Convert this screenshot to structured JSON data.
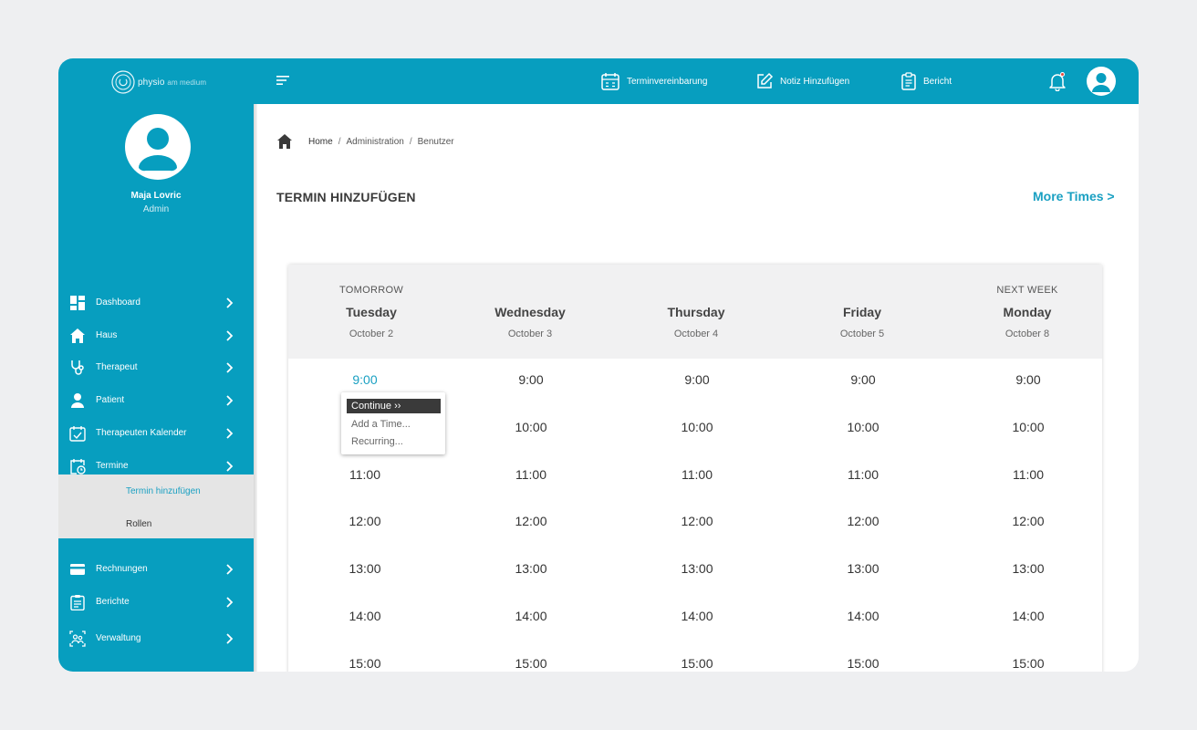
{
  "app": {
    "logo_main": "physio",
    "logo_sub": "am medium"
  },
  "topbar": {
    "actions": [
      {
        "label": "Terminvereinbarung",
        "icon": "calendar-icon"
      },
      {
        "label": "Notiz Hinzufügen",
        "icon": "edit-note-icon"
      },
      {
        "label": "Bericht",
        "icon": "clipboard-icon"
      }
    ],
    "notification_icon": "bell-icon",
    "notification_dot_color": "#e8473b"
  },
  "sidebar": {
    "user_name": "Maja Lovric",
    "user_role": "Admin",
    "items": [
      {
        "label": "Dashboard",
        "icon": "dashboard-icon"
      },
      {
        "label": "Haus",
        "icon": "house-icon"
      },
      {
        "label": "Therapeut",
        "icon": "stethoscope-icon"
      },
      {
        "label": "Patient",
        "icon": "person-icon"
      },
      {
        "label": "Therapeuten Kalender",
        "icon": "calendar-check-icon"
      },
      {
        "label": "Termine",
        "icon": "calendar-clock-icon"
      },
      {
        "label": "Rechnungen",
        "icon": "credit-card-icon"
      },
      {
        "label": "Berichte",
        "icon": "clipboard-icon"
      },
      {
        "label": "Verwaltung",
        "icon": "users-admin-icon"
      }
    ],
    "submenu": [
      {
        "label": "Termin hinzufügen",
        "active": true
      },
      {
        "label": "Rollen",
        "active": false
      }
    ]
  },
  "breadcrumb": {
    "items": [
      "Home",
      "Administration",
      "Benutzer"
    ],
    "separator": "/"
  },
  "main": {
    "title": "TERMIN HINZUFÜGEN",
    "more_times": "More Times >"
  },
  "schedule": {
    "columns": [
      {
        "tag": "TOMORROW",
        "day": "Tuesday",
        "date": "October 2"
      },
      {
        "tag": "",
        "day": "Wednesday",
        "date": "October 3"
      },
      {
        "tag": "",
        "day": "Thursday",
        "date": "October 4"
      },
      {
        "tag": "",
        "day": "Friday",
        "date": "October 5"
      },
      {
        "tag": "NEXT WEEK",
        "day": "Monday",
        "date": "October 8"
      }
    ],
    "times": [
      "9:00",
      "10:00",
      "11:00",
      "12:00",
      "13:00",
      "14:00",
      "15:00"
    ],
    "selected": {
      "column": 0,
      "time": "9:00"
    },
    "popup": {
      "continue_label": "Continue ››",
      "options": [
        "Add a Time...",
        "Recurring..."
      ]
    }
  },
  "colors": {
    "brand": "#079ebf",
    "accent_text": "#1aa0c2",
    "submenu_bg": "#e5e5e5",
    "header_bg": "#f1f1f2"
  }
}
